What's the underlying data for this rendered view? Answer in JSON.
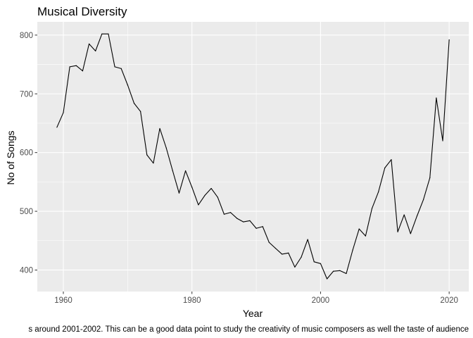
{
  "chart_data": {
    "type": "line",
    "title": "Musical Diversity",
    "xlabel": "Year",
    "ylabel": "No of Songs",
    "caption": "s around 2001-2002. This can be a good data point to study the creativity of music composers as well the taste of audience",
    "xlim": [
      1955.95,
      2023.05
    ],
    "ylim": [
      363.4,
      822.6
    ],
    "x_ticks": [
      1960,
      1980,
      2000,
      2020
    ],
    "y_ticks": [
      400,
      500,
      600,
      700,
      800
    ],
    "grid": true,
    "legend": "none",
    "colors": {
      "panel": "#ebebeb",
      "grid": "#ffffff",
      "line": "#000000",
      "tick_text": "#4d4d4d"
    },
    "series": [
      {
        "x": [
          1959,
          1960,
          1961,
          1962,
          1963,
          1964,
          1965,
          1966,
          1967,
          1968,
          1969,
          1970,
          1971,
          1972,
          1973,
          1974,
          1975,
          1976,
          1977,
          1978,
          1979,
          1980,
          1981,
          1982,
          1983,
          1984,
          1985,
          1986,
          1987,
          1988,
          1989,
          1990,
          1991,
          1992,
          1993,
          1994,
          1995,
          1996,
          1997,
          1998,
          1999,
          2000,
          2001,
          2002,
          2003,
          2004,
          2005,
          2006,
          2007,
          2008,
          2009,
          2010,
          2011,
          2012,
          2013,
          2014,
          2015,
          2016,
          2017,
          2018,
          2019,
          2020
        ],
        "y": [
          643,
          668,
          746,
          748,
          739,
          785,
          773,
          802,
          802,
          746,
          743,
          715,
          684,
          670,
          596,
          582,
          641,
          608,
          569,
          531,
          569,
          541,
          511,
          527,
          539,
          524,
          495,
          498,
          488,
          482,
          484,
          471,
          474,
          447,
          437,
          427,
          429,
          405,
          422,
          452,
          414,
          411,
          385,
          398,
          399,
          394,
          434,
          470,
          458,
          505,
          533,
          574,
          588,
          465,
          494,
          462,
          492,
          520,
          557,
          693,
          620,
          792
        ]
      }
    ]
  }
}
